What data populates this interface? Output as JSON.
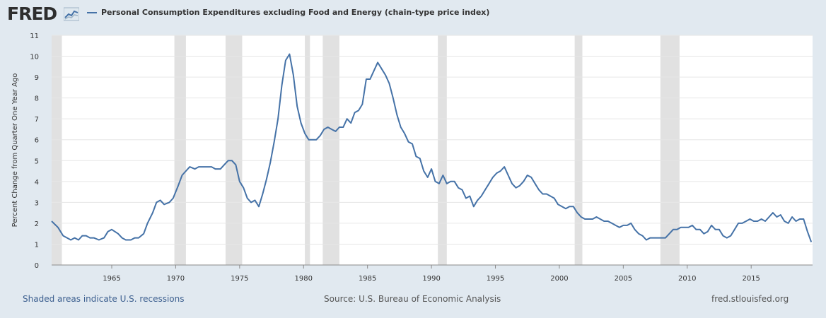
{
  "header": {
    "logo": "FRED",
    "legend_label": "Personal Consumption Expenditures excluding Food and Energy (chain-type price index)",
    "series_color": "#4572a7"
  },
  "footer": {
    "recessions_note": "Shaded areas indicate U.S. recessions",
    "source": "Source: U.S. Bureau of Economic Analysis",
    "site": "fred.stlouisfed.org"
  },
  "chart_data": {
    "type": "line",
    "title": "",
    "xlabel": "",
    "ylabel": "Percent Change from Quarter One Year Ago",
    "xlim": [
      1960.3,
      2019.8
    ],
    "ylim": [
      0,
      11
    ],
    "x_ticks": [
      1965,
      1970,
      1975,
      1980,
      1985,
      1990,
      1995,
      2000,
      2005,
      2010,
      2015
    ],
    "y_ticks": [
      0,
      1,
      2,
      3,
      4,
      5,
      6,
      7,
      8,
      9,
      10,
      11
    ],
    "grid": "horizontal",
    "recession_bands": [
      [
        1960.3,
        1961.1
      ],
      [
        1969.9,
        1970.8
      ],
      [
        1973.9,
        1975.2
      ],
      [
        1980.1,
        1980.5
      ],
      [
        1981.5,
        1982.8
      ],
      [
        1990.5,
        1991.2
      ],
      [
        2001.2,
        2001.8
      ],
      [
        2007.9,
        2009.4
      ]
    ],
    "series": [
      {
        "name": "Personal Consumption Expenditures excluding Food and Energy (chain-type price index)",
        "color": "#4572a7",
        "points": [
          [
            1960.3,
            2.1
          ],
          [
            1960.8,
            1.8
          ],
          [
            1961.2,
            1.4
          ],
          [
            1961.8,
            1.2
          ],
          [
            1962.1,
            1.3
          ],
          [
            1962.4,
            1.2
          ],
          [
            1962.7,
            1.4
          ],
          [
            1963.0,
            1.4
          ],
          [
            1963.3,
            1.3
          ],
          [
            1963.6,
            1.3
          ],
          [
            1964.0,
            1.2
          ],
          [
            1964.4,
            1.3
          ],
          [
            1964.7,
            1.6
          ],
          [
            1965.0,
            1.7
          ],
          [
            1965.5,
            1.5
          ],
          [
            1965.8,
            1.3
          ],
          [
            1966.1,
            1.2
          ],
          [
            1966.5,
            1.2
          ],
          [
            1966.8,
            1.3
          ],
          [
            1967.1,
            1.3
          ],
          [
            1967.5,
            1.5
          ],
          [
            1967.8,
            2.0
          ],
          [
            1968.2,
            2.5
          ],
          [
            1968.5,
            3.0
          ],
          [
            1968.8,
            3.1
          ],
          [
            1969.1,
            2.9
          ],
          [
            1969.5,
            3.0
          ],
          [
            1969.8,
            3.2
          ],
          [
            1970.2,
            3.8
          ],
          [
            1970.5,
            4.3
          ],
          [
            1970.8,
            4.5
          ],
          [
            1971.1,
            4.7
          ],
          [
            1971.5,
            4.6
          ],
          [
            1971.8,
            4.7
          ],
          [
            1972.1,
            4.7
          ],
          [
            1972.5,
            4.7
          ],
          [
            1972.8,
            4.7
          ],
          [
            1973.1,
            4.6
          ],
          [
            1973.5,
            4.6
          ],
          [
            1973.8,
            4.8
          ],
          [
            1974.1,
            5.0
          ],
          [
            1974.4,
            5.0
          ],
          [
            1974.7,
            4.8
          ],
          [
            1975.0,
            4.0
          ],
          [
            1975.3,
            3.7
          ],
          [
            1975.6,
            3.2
          ],
          [
            1975.9,
            3.0
          ],
          [
            1976.2,
            3.1
          ],
          [
            1976.5,
            2.8
          ],
          [
            1976.8,
            3.4
          ],
          [
            1977.1,
            4.1
          ],
          [
            1977.4,
            4.9
          ],
          [
            1977.7,
            5.9
          ],
          [
            1978.0,
            7.0
          ],
          [
            1978.3,
            8.6
          ],
          [
            1978.6,
            9.8
          ],
          [
            1978.9,
            10.1
          ],
          [
            1979.2,
            9.1
          ],
          [
            1979.5,
            7.6
          ],
          [
            1979.8,
            6.8
          ],
          [
            1980.1,
            6.3
          ],
          [
            1980.4,
            6.0
          ],
          [
            1980.7,
            6.0
          ],
          [
            1981.0,
            6.0
          ],
          [
            1981.3,
            6.2
          ],
          [
            1981.6,
            6.5
          ],
          [
            1981.9,
            6.6
          ],
          [
            1982.2,
            6.5
          ],
          [
            1982.5,
            6.4
          ],
          [
            1982.8,
            6.6
          ],
          [
            1983.1,
            6.6
          ],
          [
            1983.4,
            7.0
          ],
          [
            1983.7,
            6.8
          ],
          [
            1984.0,
            7.3
          ],
          [
            1984.3,
            7.4
          ],
          [
            1984.6,
            7.7
          ],
          [
            1984.9,
            8.9
          ],
          [
            1985.2,
            8.9
          ],
          [
            1985.5,
            9.3
          ],
          [
            1985.8,
            9.7
          ],
          [
            1986.1,
            9.4
          ],
          [
            1986.4,
            9.1
          ],
          [
            1986.7,
            8.7
          ],
          [
            1987.0,
            8.0
          ],
          [
            1987.3,
            7.2
          ],
          [
            1987.6,
            6.6
          ],
          [
            1987.9,
            6.3
          ],
          [
            1988.2,
            5.9
          ],
          [
            1988.5,
            5.8
          ],
          [
            1988.8,
            5.2
          ],
          [
            1989.1,
            5.1
          ],
          [
            1989.4,
            4.5
          ],
          [
            1989.7,
            4.2
          ],
          [
            1990.0,
            4.6
          ],
          [
            1990.3,
            4.0
          ],
          [
            1990.6,
            3.9
          ],
          [
            1990.9,
            4.3
          ],
          [
            1991.2,
            3.9
          ],
          [
            1991.5,
            4.0
          ],
          [
            1991.8,
            4.0
          ],
          [
            1992.1,
            3.7
          ],
          [
            1992.4,
            3.6
          ],
          [
            1992.7,
            3.2
          ],
          [
            1993.0,
            3.3
          ],
          [
            1993.3,
            2.8
          ],
          [
            1993.6,
            3.1
          ],
          [
            1993.9,
            3.3
          ],
          [
            1994.2,
            3.6
          ],
          [
            1994.5,
            3.9
          ],
          [
            1994.8,
            4.2
          ],
          [
            1995.1,
            4.4
          ],
          [
            1995.4,
            4.5
          ],
          [
            1995.7,
            4.7
          ],
          [
            1996.0,
            4.3
          ],
          [
            1996.3,
            3.9
          ],
          [
            1996.6,
            3.7
          ],
          [
            1996.9,
            3.8
          ],
          [
            1997.2,
            4.0
          ],
          [
            1997.5,
            4.3
          ],
          [
            1997.8,
            4.2
          ],
          [
            1998.1,
            3.9
          ],
          [
            1998.4,
            3.6
          ],
          [
            1998.7,
            3.4
          ],
          [
            1999.0,
            3.4
          ],
          [
            1999.3,
            3.3
          ],
          [
            1999.6,
            3.2
          ],
          [
            1999.9,
            2.9
          ],
          [
            2000.2,
            2.8
          ],
          [
            2000.5,
            2.7
          ],
          [
            2000.8,
            2.8
          ],
          [
            2001.1,
            2.8
          ],
          [
            2001.4,
            2.5
          ],
          [
            2001.7,
            2.3
          ],
          [
            2002.0,
            2.2
          ],
          [
            2002.3,
            2.2
          ],
          [
            2002.6,
            2.2
          ],
          [
            2002.9,
            2.3
          ],
          [
            2003.2,
            2.2
          ],
          [
            2003.5,
            2.1
          ],
          [
            2003.8,
            2.1
          ],
          [
            2004.1,
            2.0
          ],
          [
            2004.4,
            1.9
          ],
          [
            2004.7,
            1.8
          ],
          [
            2005.0,
            1.9
          ],
          [
            2005.3,
            1.9
          ],
          [
            2005.6,
            2.0
          ],
          [
            2005.9,
            1.7
          ],
          [
            2006.2,
            1.5
          ],
          [
            2006.5,
            1.4
          ],
          [
            2006.8,
            1.2
          ],
          [
            2007.1,
            1.3
          ],
          [
            2007.4,
            1.3
          ],
          [
            2007.7,
            1.3
          ],
          [
            2008.0,
            1.3
          ],
          [
            2008.3,
            1.3
          ],
          [
            2008.6,
            1.5
          ],
          [
            2008.9,
            1.7
          ],
          [
            2009.2,
            1.7
          ],
          [
            2009.5,
            1.8
          ],
          [
            2009.8,
            1.8
          ],
          [
            2010.1,
            1.8
          ],
          [
            2010.4,
            1.9
          ],
          [
            2010.7,
            1.7
          ],
          [
            2011.0,
            1.7
          ],
          [
            2011.3,
            1.5
          ],
          [
            2011.6,
            1.6
          ],
          [
            2011.9,
            1.9
          ],
          [
            2012.2,
            1.7
          ],
          [
            2012.5,
            1.7
          ],
          [
            2012.8,
            1.4
          ],
          [
            2013.1,
            1.3
          ],
          [
            2013.4,
            1.4
          ],
          [
            2013.7,
            1.7
          ],
          [
            2014.0,
            2.0
          ],
          [
            2014.3,
            2.0
          ],
          [
            2014.6,
            2.1
          ],
          [
            2014.9,
            2.2
          ],
          [
            2015.2,
            2.1
          ],
          [
            2015.5,
            2.1
          ],
          [
            2015.8,
            2.2
          ],
          [
            2016.1,
            2.1
          ],
          [
            2016.4,
            2.3
          ],
          [
            2016.7,
            2.5
          ],
          [
            2017.0,
            2.3
          ],
          [
            2017.3,
            2.4
          ],
          [
            2017.6,
            2.1
          ],
          [
            2017.9,
            2.0
          ],
          [
            2018.2,
            2.3
          ],
          [
            2018.5,
            2.1
          ],
          [
            2018.8,
            2.2
          ],
          [
            2019.1,
            2.2
          ],
          [
            2019.4,
            1.6
          ],
          [
            2019.7,
            1.1
          ]
        ]
      }
    ]
  }
}
